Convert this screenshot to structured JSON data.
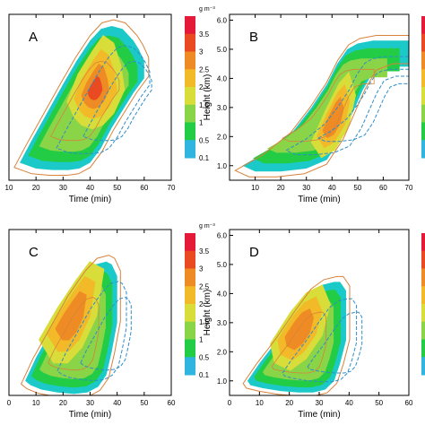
{
  "chart_data": [
    {
      "type": "contour",
      "panel_label": "A",
      "xlabel": "Time (min)",
      "ylabel": "",
      "xlim": [
        10,
        70
      ],
      "ylim": [
        0.5,
        6.2
      ],
      "x_ticks": [
        10,
        20,
        30,
        40,
        50,
        60,
        70
      ],
      "y_ticks": [],
      "colorbar": {
        "unit": "g m⁻³",
        "levels": [
          "3.5",
          "3",
          "2.5",
          "2",
          "1.5",
          "1",
          "0.5",
          "0.1"
        ]
      },
      "filled_region": {
        "level_1": {
          "x": [
            14,
            18,
            24,
            30,
            35,
            40,
            44,
            48,
            52,
            56,
            58,
            60,
            60,
            56,
            52,
            48,
            44,
            40,
            36,
            32,
            26,
            20,
            14
          ],
          "y": [
            1.1,
            1.8,
            2.8,
            3.8,
            4.6,
            5.3,
            5.7,
            5.8,
            5.7,
            5.3,
            5.0,
            4.6,
            4.0,
            3.5,
            2.9,
            2.3,
            1.6,
            1.1,
            0.9,
            0.85,
            0.85,
            0.9,
            1.1
          ]
        },
        "level_3": {
          "x": [
            34,
            37,
            41,
            44,
            47,
            49,
            50,
            47,
            44,
            41,
            38,
            36,
            34
          ],
          "y": [
            3.3,
            4.0,
            4.6,
            5.0,
            4.8,
            4.2,
            3.6,
            3.0,
            2.7,
            2.6,
            2.7,
            2.9,
            3.3
          ]
        }
      }
    },
    {
      "type": "contour",
      "panel_label": "B",
      "xlabel": "Time (min)",
      "ylabel": "Height (km)",
      "xlim": [
        0,
        70
      ],
      "ylim": [
        0.5,
        6.2
      ],
      "x_ticks": [
        10,
        20,
        30,
        40,
        50,
        60,
        70
      ],
      "y_ticks": [
        "1.0",
        "2.0",
        "3.0",
        "4.0",
        "5.0",
        "6.0"
      ],
      "colorbar": {
        "unit": "",
        "levels": []
      },
      "filled_region": {
        "level_1": {
          "x": [
            5,
            15,
            25,
            32,
            38,
            42,
            46,
            50,
            56,
            62,
            70,
            70,
            62,
            56,
            52,
            48,
            44,
            38,
            30,
            20,
            10,
            5
          ],
          "y": [
            1.0,
            1.5,
            2.2,
            3.0,
            3.8,
            4.5,
            5.0,
            5.2,
            5.3,
            5.3,
            5.3,
            4.4,
            4.4,
            4.2,
            3.6,
            2.8,
            2.0,
            1.2,
            0.9,
            0.8,
            0.8,
            1.0
          ]
        },
        "level_3": {
          "x": [
            34,
            38,
            42,
            45,
            47,
            45,
            41,
            37,
            34
          ],
          "y": [
            2.0,
            2.8,
            3.5,
            3.8,
            3.2,
            2.4,
            1.8,
            1.6,
            2.0
          ]
        }
      }
    },
    {
      "type": "contour",
      "panel_label": "C",
      "xlabel": "Time (min)",
      "ylabel": "",
      "xlim": [
        0,
        60
      ],
      "ylim": [
        0.5,
        6.2
      ],
      "x_ticks": [
        0,
        10,
        20,
        30,
        40,
        50,
        60
      ],
      "y_ticks": [],
      "colorbar": {
        "unit": "g m⁻³",
        "levels": [
          "3.5",
          "3",
          "2.5",
          "2",
          "1.5",
          "1",
          "0.5",
          "0.1"
        ]
      },
      "filled_region": {
        "level_1": {
          "x": [
            6,
            10,
            16,
            22,
            28,
            32,
            36,
            38,
            40,
            40,
            38,
            36,
            33,
            29,
            24,
            18,
            12,
            8,
            6
          ],
          "y": [
            1.0,
            1.8,
            2.8,
            3.8,
            4.6,
            5.0,
            5.1,
            5.0,
            4.6,
            3.0,
            2.0,
            1.2,
            0.8,
            0.6,
            0.55,
            0.6,
            0.7,
            0.85,
            1.0
          ]
        },
        "level_3": {
          "x": [
            14,
            19,
            24,
            28,
            32,
            30,
            26,
            22,
            18,
            14
          ],
          "y": [
            2.6,
            3.4,
            4.1,
            4.6,
            4.4,
            3.2,
            2.4,
            2.0,
            2.0,
            2.6
          ]
        }
      }
    },
    {
      "type": "contour",
      "panel_label": "D",
      "xlabel": "Time (min)",
      "ylabel": "Height (km)",
      "xlim": [
        0,
        60
      ],
      "ylim": [
        0.5,
        6.2
      ],
      "x_ticks": [
        0,
        10,
        20,
        30,
        40,
        50,
        60
      ],
      "y_ticks": [
        "1.0",
        "2.0",
        "3.0",
        "4.0",
        "5.0",
        "6.0"
      ],
      "colorbar": {
        "unit": "",
        "levels": []
      },
      "filled_region": {
        "level_1": {
          "x": [
            6,
            10,
            16,
            22,
            27,
            31,
            35,
            37,
            39,
            39,
            37,
            35,
            32,
            28,
            23,
            17,
            11,
            7,
            6
          ],
          "y": [
            1.0,
            1.6,
            2.4,
            3.3,
            4.0,
            4.3,
            4.4,
            4.4,
            4.1,
            2.4,
            1.6,
            1.0,
            0.7,
            0.6,
            0.6,
            0.65,
            0.75,
            0.85,
            1.0
          ]
        },
        "level_3": {
          "x": [
            16,
            21,
            25,
            29,
            31,
            29,
            25,
            21,
            17,
            16
          ],
          "y": [
            2.4,
            3.2,
            3.7,
            3.9,
            3.4,
            2.6,
            2.0,
            1.7,
            1.9,
            2.4
          ]
        }
      }
    }
  ],
  "colors": {
    "fill_levels": [
      "#1cc9c9",
      "#2fb5e0",
      "#22cc44",
      "#8ad448",
      "#d8dd3a",
      "#f2b928",
      "#ef8b24",
      "#ea4a22",
      "#e41a38"
    ],
    "contour_positive": "#d9823a",
    "contour_negative": "#2f8ec8"
  }
}
